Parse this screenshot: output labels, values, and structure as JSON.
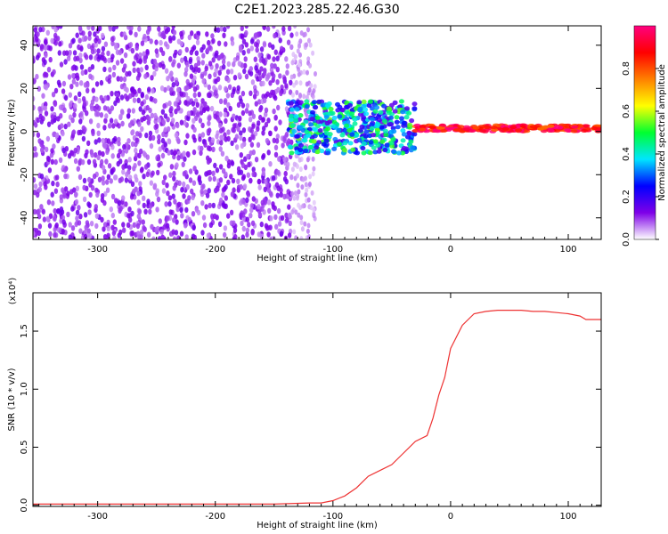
{
  "figure_title": "C2E1.2023.285.22.46.G30",
  "chart_data": [
    {
      "type": "heatmap",
      "title": "",
      "xlabel": "Height of straight line (km)",
      "ylabel": "Frequency (Hz)",
      "xlim": [
        -355,
        128
      ],
      "ylim": [
        -50,
        49
      ],
      "x_ticks": [
        -300,
        -200,
        -100,
        0,
        100
      ],
      "y_ticks": [
        -40,
        -20,
        0,
        20,
        40
      ],
      "colorbar": {
        "label": "Normalized spectral amplitude",
        "range": [
          0,
          1
        ],
        "ticks": [
          0.0,
          0.2,
          0.4,
          0.6,
          0.8
        ],
        "tick_labels": [
          "0.0",
          "0.2",
          "0.4",
          "0.6",
          "0.8"
        ],
        "colors": [
          "#ffffff",
          "#7e00e8",
          "#0000ff",
          "#00e5ff",
          "#00ff30",
          "#ffff00",
          "#ff8000",
          "#ff0000",
          "#ff0080"
        ]
      },
      "regions": [
        {
          "x_range": [
            -355,
            -135
          ],
          "freq_range": [
            -50,
            49
          ],
          "amplitude": 0.1,
          "pattern": "noise"
        },
        {
          "x_range": [
            -135,
            -115
          ],
          "freq_range": [
            -50,
            49
          ],
          "amplitude": 0.05,
          "pattern": "sparse noise"
        },
        {
          "x_range": [
            -138,
            -30
          ],
          "freq_range": [
            -10,
            14
          ],
          "amplitude": 0.35,
          "pattern": "broadband signal"
        },
        {
          "x_range": [
            -30,
            128
          ],
          "freq_range": [
            0,
            3
          ],
          "amplitude": 0.9,
          "pattern": "narrow line near 1 Hz"
        }
      ]
    },
    {
      "type": "line",
      "title": "",
      "xlabel": "Height of straight line (km)",
      "ylabel": "SNR (10 * v/v)",
      "y_multiplier": "(x10⁴)",
      "xlim": [
        -355,
        128
      ],
      "ylim": [
        -0.01,
        1.83
      ],
      "x_ticks": [
        -300,
        -200,
        -100,
        0,
        100
      ],
      "y_ticks": [
        0.0,
        0.5,
        1.0,
        1.5
      ],
      "y_tick_labels": [
        "0.0",
        "0.5",
        "1.0",
        "1.5"
      ],
      "series_color": "#ee3333",
      "series": [
        {
          "name": "",
          "x": [
            -355,
            -300,
            -250,
            -200,
            -150,
            -120,
            -110,
            -100,
            -90,
            -80,
            -70,
            -60,
            -50,
            -40,
            -30,
            -20,
            -15,
            -10,
            -5,
            0,
            10,
            20,
            30,
            40,
            50,
            60,
            70,
            80,
            90,
            100,
            110,
            115,
            120,
            128
          ],
          "y": [
            0.01,
            0.01,
            0.01,
            0.01,
            0.01,
            0.02,
            0.02,
            0.04,
            0.08,
            0.15,
            0.25,
            0.3,
            0.35,
            0.45,
            0.55,
            0.6,
            0.75,
            0.95,
            1.1,
            1.35,
            1.55,
            1.65,
            1.67,
            1.68,
            1.68,
            1.68,
            1.67,
            1.67,
            1.66,
            1.65,
            1.63,
            1.6,
            1.6,
            1.6
          ]
        }
      ]
    }
  ]
}
